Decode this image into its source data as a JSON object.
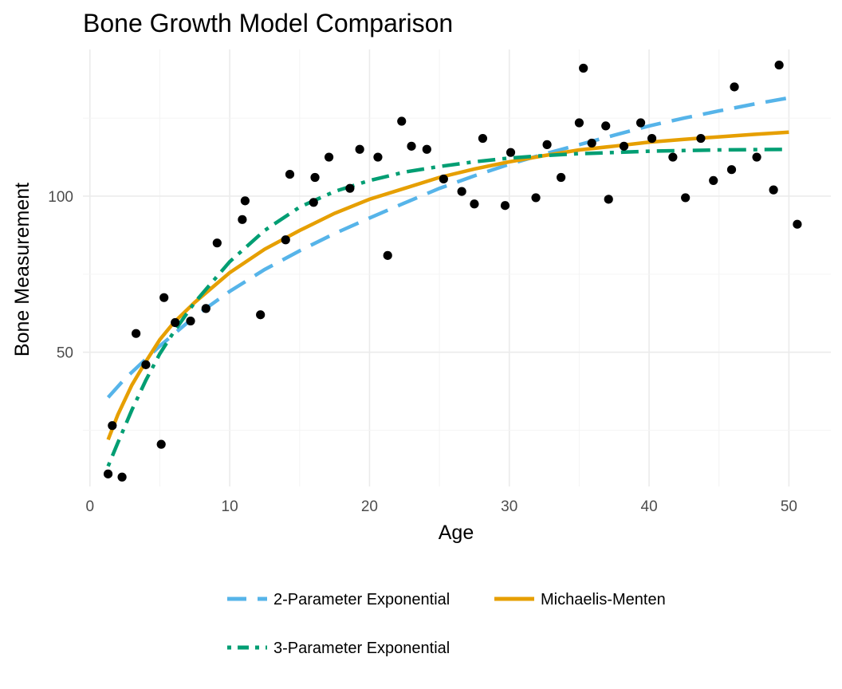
{
  "chart_data": {
    "type": "scatter",
    "title": "Bone Growth Model Comparison",
    "xlabel": "Age",
    "ylabel": "Bone Measurement",
    "xlim": [
      -0.5,
      53
    ],
    "ylim": [
      7,
      147
    ],
    "x_ticks": [
      0,
      10,
      20,
      30,
      40,
      50
    ],
    "y_ticks": [
      50,
      100
    ],
    "grid": true,
    "legend_position": "bottom",
    "points": [
      {
        "x": 1.3,
        "y": 11
      },
      {
        "x": 1.6,
        "y": 26.5
      },
      {
        "x": 2.3,
        "y": 10
      },
      {
        "x": 3.3,
        "y": 56
      },
      {
        "x": 4.0,
        "y": 46
      },
      {
        "x": 5.1,
        "y": 20.5
      },
      {
        "x": 5.3,
        "y": 67.5
      },
      {
        "x": 6.1,
        "y": 59.5
      },
      {
        "x": 7.2,
        "y": 60
      },
      {
        "x": 8.3,
        "y": 64
      },
      {
        "x": 9.1,
        "y": 85
      },
      {
        "x": 10.9,
        "y": 92.5
      },
      {
        "x": 11.1,
        "y": 98.5
      },
      {
        "x": 12.2,
        "y": 62
      },
      {
        "x": 14.0,
        "y": 86
      },
      {
        "x": 14.3,
        "y": 107
      },
      {
        "x": 16.0,
        "y": 98
      },
      {
        "x": 16.1,
        "y": 106
      },
      {
        "x": 17.1,
        "y": 112.5
      },
      {
        "x": 18.6,
        "y": 102.5
      },
      {
        "x": 19.3,
        "y": 115
      },
      {
        "x": 20.6,
        "y": 112.5
      },
      {
        "x": 21.3,
        "y": 81
      },
      {
        "x": 22.3,
        "y": 124
      },
      {
        "x": 23.0,
        "y": 116
      },
      {
        "x": 24.1,
        "y": 115
      },
      {
        "x": 25.3,
        "y": 105.5
      },
      {
        "x": 26.6,
        "y": 101.5
      },
      {
        "x": 27.5,
        "y": 97.5
      },
      {
        "x": 28.1,
        "y": 118.5
      },
      {
        "x": 29.7,
        "y": 97
      },
      {
        "x": 30.1,
        "y": 114
      },
      {
        "x": 31.9,
        "y": 99.5
      },
      {
        "x": 32.7,
        "y": 116.5
      },
      {
        "x": 33.7,
        "y": 106
      },
      {
        "x": 35.0,
        "y": 123.5
      },
      {
        "x": 35.3,
        "y": 141
      },
      {
        "x": 35.9,
        "y": 117
      },
      {
        "x": 36.9,
        "y": 122.5
      },
      {
        "x": 37.1,
        "y": 99
      },
      {
        "x": 38.2,
        "y": 116
      },
      {
        "x": 39.4,
        "y": 123.5
      },
      {
        "x": 40.2,
        "y": 118.5
      },
      {
        "x": 41.7,
        "y": 112.5
      },
      {
        "x": 42.6,
        "y": 99.5
      },
      {
        "x": 43.7,
        "y": 118.5
      },
      {
        "x": 44.6,
        "y": 105
      },
      {
        "x": 45.9,
        "y": 108.5
      },
      {
        "x": 46.1,
        "y": 135
      },
      {
        "x": 47.7,
        "y": 112.5
      },
      {
        "x": 48.9,
        "y": 102
      },
      {
        "x": 49.3,
        "y": 142
      },
      {
        "x": 50.6,
        "y": 91
      }
    ],
    "series": [
      {
        "name": "2-Parameter Exponential",
        "color": "#56B4E9",
        "dash": "dashed",
        "x": [
          1.3,
          2.5,
          5,
          7.5,
          10,
          12.5,
          15,
          17.5,
          20,
          22.5,
          25,
          27.5,
          30,
          32.5,
          35,
          37.5,
          40,
          42.5,
          45,
          47.5,
          50
        ],
        "y": [
          35.5,
          41.5,
          52,
          61.5,
          69.5,
          76.5,
          82.5,
          88,
          93,
          97.8,
          102.5,
          106.5,
          110.2,
          113.5,
          116.5,
          119.5,
          122.5,
          125,
          127.3,
          129.5,
          131.5
        ]
      },
      {
        "name": "Michaelis-Menten",
        "color": "#E69F00",
        "dash": "solid",
        "x": [
          1.3,
          2,
          3,
          4,
          5,
          6,
          7.5,
          10,
          12.5,
          15,
          17.5,
          20,
          22.5,
          25,
          27.5,
          30,
          32.5,
          35,
          37.5,
          40,
          42.5,
          45,
          47.5,
          50
        ],
        "y": [
          22,
          30,
          39.5,
          47,
          54,
          59.5,
          66,
          75.5,
          83,
          89,
          94.5,
          99,
          102.5,
          106,
          108.7,
          111,
          113,
          114.8,
          116,
          117.3,
          118.2,
          119,
          119.8,
          120.5
        ]
      },
      {
        "name": "3-Parameter Exponential",
        "color": "#009E73",
        "dash": "dotdash",
        "x": [
          1.3,
          2,
          3,
          4,
          5,
          6,
          7.5,
          10,
          12.5,
          15,
          17.5,
          20,
          22.5,
          25,
          27.5,
          30,
          32.5,
          35,
          37.5,
          40,
          42.5,
          45,
          47.5,
          50
        ],
        "y": [
          13.5,
          21,
          31.5,
          41,
          49.5,
          56.5,
          66,
          79,
          89,
          96.5,
          101.5,
          105,
          107.7,
          109.5,
          111,
          112.2,
          113,
          113.6,
          114,
          114.4,
          114.6,
          114.8,
          114.9,
          115
        ]
      }
    ],
    "legend": [
      {
        "label": "2-Parameter Exponential",
        "color": "#56B4E9",
        "dash": "dashed"
      },
      {
        "label": "Michaelis-Menten",
        "color": "#E69F00",
        "dash": "solid"
      },
      {
        "label": "3-Parameter Exponential",
        "color": "#009E73",
        "dash": "dotdash"
      }
    ]
  }
}
